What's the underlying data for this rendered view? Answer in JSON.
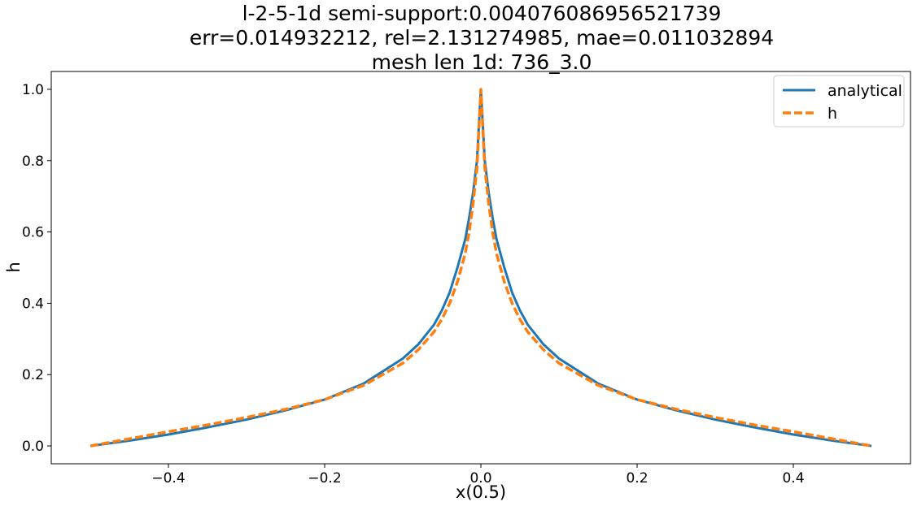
{
  "chart_data": {
    "type": "line",
    "title_lines": [
      "l-2-5-1d  semi-support:0.004076086956521739",
      "err=0.014932212, rel=2.131274985, mae=0.011032894",
      "mesh len 1d: 736_3.0"
    ],
    "xlabel": "x(0.5)",
    "ylabel": "h",
    "xlim": [
      -0.55,
      0.55
    ],
    "ylim": [
      -0.05,
      1.05
    ],
    "x_ticks": [
      -0.4,
      -0.2,
      0.0,
      0.2,
      0.4
    ],
    "x_tick_labels": [
      "−0.4",
      "−0.2",
      "0.0",
      "0.2",
      "0.4"
    ],
    "y_ticks": [
      0.0,
      0.2,
      0.4,
      0.6,
      0.8,
      1.0
    ],
    "y_tick_labels": [
      "0.0",
      "0.2",
      "0.4",
      "0.6",
      "0.8",
      "1.0"
    ],
    "grid": false,
    "legend_position": "top-right",
    "series": [
      {
        "name": "analytical",
        "color": "#1f77b4",
        "style": "solid",
        "x": [
          -0.5,
          -0.45,
          -0.4,
          -0.35,
          -0.3,
          -0.25,
          -0.2,
          -0.15,
          -0.1,
          -0.08,
          -0.06,
          -0.05,
          -0.04,
          -0.03,
          -0.02,
          -0.015,
          -0.01,
          -0.005,
          0.0,
          0.005,
          0.01,
          0.015,
          0.02,
          0.03,
          0.04,
          0.05,
          0.06,
          0.08,
          0.1,
          0.15,
          0.2,
          0.25,
          0.3,
          0.35,
          0.4,
          0.45,
          0.5
        ],
        "y": [
          0.0,
          0.015,
          0.032,
          0.052,
          0.074,
          0.1,
          0.13,
          0.175,
          0.245,
          0.285,
          0.34,
          0.38,
          0.43,
          0.5,
          0.58,
          0.64,
          0.71,
          0.8,
          1.0,
          0.8,
          0.71,
          0.64,
          0.58,
          0.5,
          0.43,
          0.38,
          0.34,
          0.285,
          0.245,
          0.175,
          0.13,
          0.1,
          0.074,
          0.052,
          0.032,
          0.015,
          0.0
        ]
      },
      {
        "name": "h",
        "color": "#ff7f0e",
        "style": "dashed",
        "x": [
          -0.5,
          -0.45,
          -0.4,
          -0.35,
          -0.3,
          -0.25,
          -0.2,
          -0.15,
          -0.1,
          -0.08,
          -0.06,
          -0.05,
          -0.04,
          -0.03,
          -0.02,
          -0.015,
          -0.01,
          -0.005,
          0.0,
          0.005,
          0.01,
          0.015,
          0.02,
          0.03,
          0.04,
          0.05,
          0.06,
          0.08,
          0.1,
          0.15,
          0.2,
          0.25,
          0.3,
          0.35,
          0.4,
          0.45,
          0.5
        ],
        "y": [
          0.0,
          0.02,
          0.04,
          0.059,
          0.08,
          0.103,
          0.13,
          0.17,
          0.232,
          0.27,
          0.32,
          0.355,
          0.4,
          0.46,
          0.54,
          0.6,
          0.68,
          0.78,
          1.0,
          0.78,
          0.68,
          0.6,
          0.54,
          0.46,
          0.4,
          0.355,
          0.32,
          0.27,
          0.232,
          0.17,
          0.13,
          0.103,
          0.08,
          0.059,
          0.04,
          0.02,
          0.0
        ]
      }
    ]
  }
}
